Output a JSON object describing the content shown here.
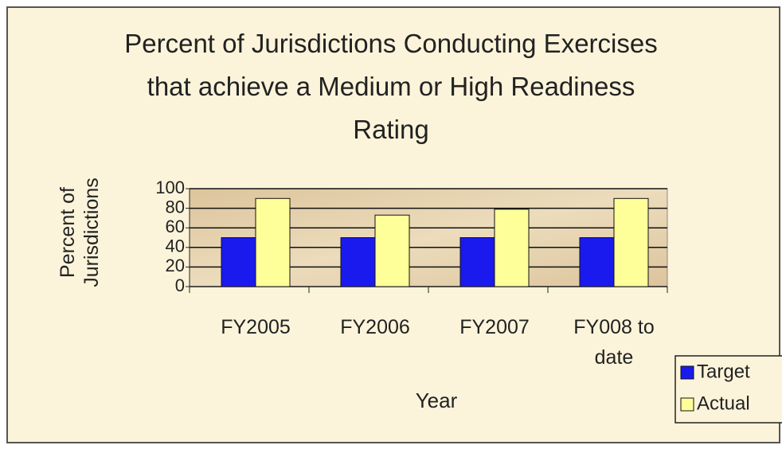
{
  "chart_data": {
    "type": "bar",
    "title": "Percent of Jurisdictions Conducting Exercises that achieve a Medium or High Readiness Rating",
    "x_label": "Year",
    "y_label": "Percent of Jurisdictions",
    "categories": [
      "FY2005",
      "FY2006",
      "FY2007",
      "FY008 to date"
    ],
    "series": [
      {
        "name": "Target",
        "color": "#1a1aee",
        "values": [
          50,
          50,
          50,
          50
        ]
      },
      {
        "name": "Actual",
        "color": "#ffff99",
        "values": [
          90,
          73,
          79,
          90
        ]
      }
    ],
    "ylim": [
      0,
      100
    ],
    "yticks": [
      0,
      20,
      40,
      60,
      80,
      100
    ],
    "grid": true,
    "legend": "bottom-right"
  }
}
